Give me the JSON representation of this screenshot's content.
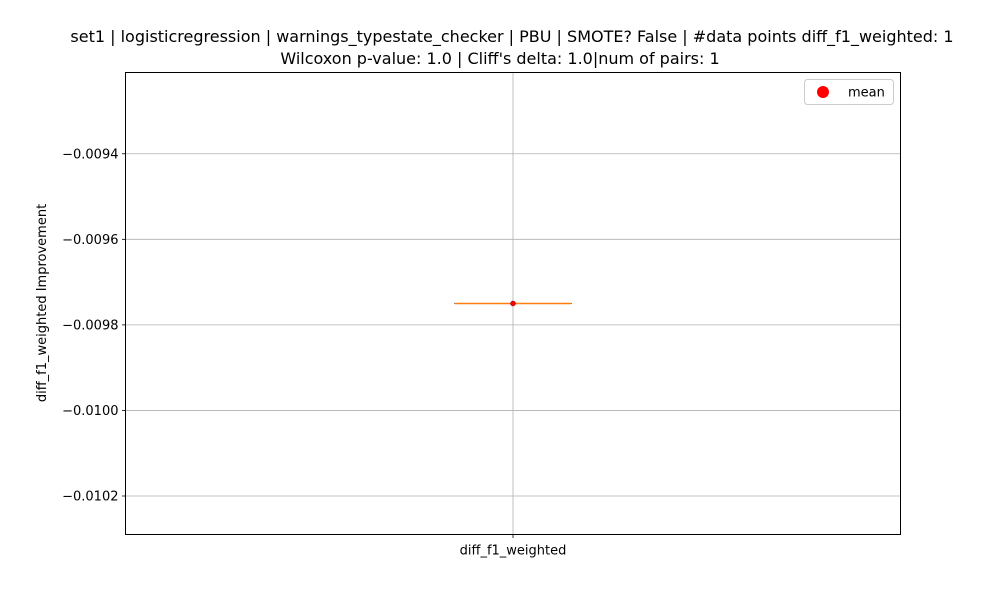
{
  "chart_data": {
    "type": "box",
    "title_lines": [
      "set1 | logisticregression | warnings_typestate_checker | PBU | SMOTE? False | #data points diff_f1_weighted: 1",
      "Wilcoxon p-value: 1.0 | Cliff's delta: 1.0|num of pairs: 1"
    ],
    "xlabel": "",
    "ylabel": "diff_f1_weighted Improvement",
    "categories": [
      "diff_f1_weighted"
    ],
    "ylim": [
      -0.01029,
      -0.00921
    ],
    "yticks": [
      -0.0094,
      -0.0096,
      -0.0098,
      -0.01,
      -0.0102
    ],
    "ytick_labels": [
      "−0.0094",
      "−0.0096",
      "−0.0098",
      "−0.0100",
      "−0.0102"
    ],
    "grid": true,
    "legend": {
      "position": "top-right",
      "entries": [
        {
          "label": "mean",
          "color": "#ff0000",
          "marker": "circle"
        }
      ]
    },
    "boxes": [
      {
        "category": "diff_f1_weighted",
        "min": -0.00975,
        "q1": -0.00975,
        "median": -0.00975,
        "q3": -0.00975,
        "max": -0.00975,
        "mean": -0.00975
      }
    ],
    "colors": {
      "median": "#ff7f0e",
      "mean": "#ff0000",
      "box": "#000000",
      "grid": "#b0b0b0"
    }
  }
}
